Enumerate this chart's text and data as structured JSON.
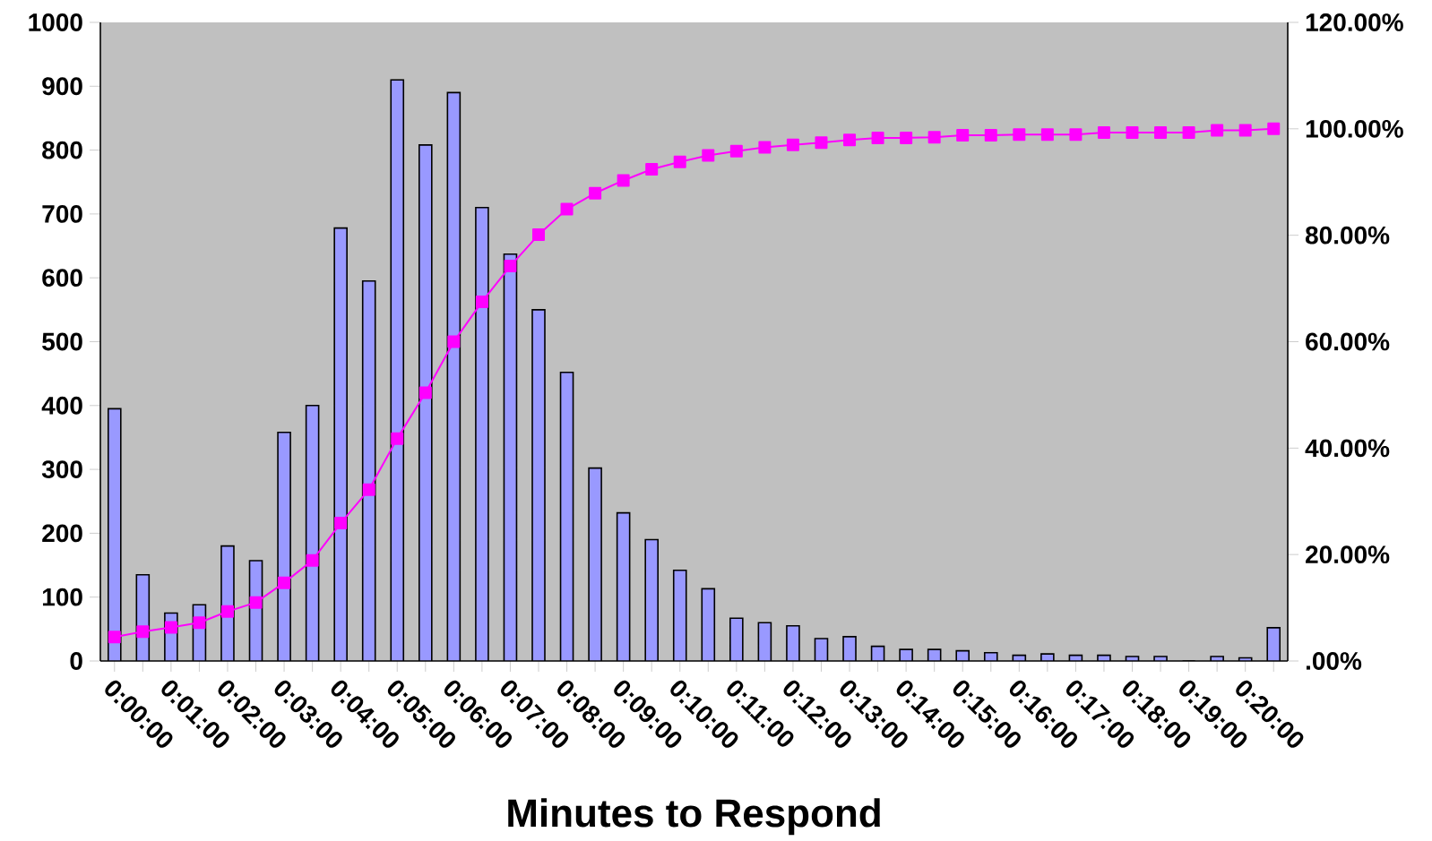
{
  "chart_data": {
    "type": "bar",
    "xlabel": "Minutes to Respond",
    "categories": [
      "0:00:00",
      null,
      "0:01:00",
      null,
      "0:02:00",
      null,
      "0:03:00",
      null,
      "0:04:00",
      null,
      "0:05:00",
      null,
      "0:06:00",
      null,
      "0:07:00",
      null,
      "0:08:00",
      null,
      "0:09:00",
      null,
      "0:10:00",
      null,
      "0:11:00",
      null,
      "0:12:00",
      null,
      "0:13:00",
      null,
      "0:14:00",
      null,
      "0:15:00",
      null,
      "0:16:00",
      null,
      "0:17:00",
      null,
      "0:18:00",
      null,
      "0:19:00",
      null,
      "0:20:00",
      null
    ],
    "series": [
      {
        "color": "#9999ff",
        "values": [
          395,
          135,
          75,
          88,
          180,
          157,
          358,
          400,
          678,
          595,
          910,
          808,
          890,
          710,
          637,
          550,
          452,
          302,
          232,
          190,
          142,
          113,
          67,
          60,
          55,
          35,
          38,
          23,
          18,
          18,
          16,
          13,
          9,
          11,
          9,
          9,
          7,
          7,
          0,
          7,
          5,
          52
        ]
      },
      {
        "type": "line",
        "axis": "y2",
        "color": "#ff00ff",
        "values": [
          4.5,
          5.5,
          6.3,
          7.2,
          9.3,
          11.0,
          14.7,
          18.9,
          25.9,
          32.2,
          41.8,
          50.4,
          60.0,
          67.5,
          74.2,
          80.1,
          84.9,
          87.9,
          90.3,
          92.4,
          93.8,
          95.0,
          95.8,
          96.5,
          97.0,
          97.4,
          97.9,
          98.3,
          98.3,
          98.4,
          98.8,
          98.8,
          98.9,
          98.9,
          98.9,
          99.3,
          99.3,
          99.3,
          99.3,
          99.7,
          99.7,
          100
        ]
      }
    ],
    "marker": "square",
    "ylim": [
      0,
      1000
    ],
    "yticks": [
      0,
      100,
      200,
      300,
      400,
      500,
      600,
      700,
      800,
      900,
      1000
    ],
    "y2lim": [
      0,
      120
    ],
    "y2ticks": [
      {
        "value": 0,
        "label": ".00%"
      },
      {
        "value": 20,
        "label": "20.00%"
      },
      {
        "value": 40,
        "label": "40.00%"
      },
      {
        "value": 60,
        "label": "60.00%"
      },
      {
        "value": 80,
        "label": "80.00%"
      },
      {
        "value": 100,
        "label": "100.00%"
      },
      {
        "value": 120,
        "label": "120.00%"
      }
    ]
  }
}
